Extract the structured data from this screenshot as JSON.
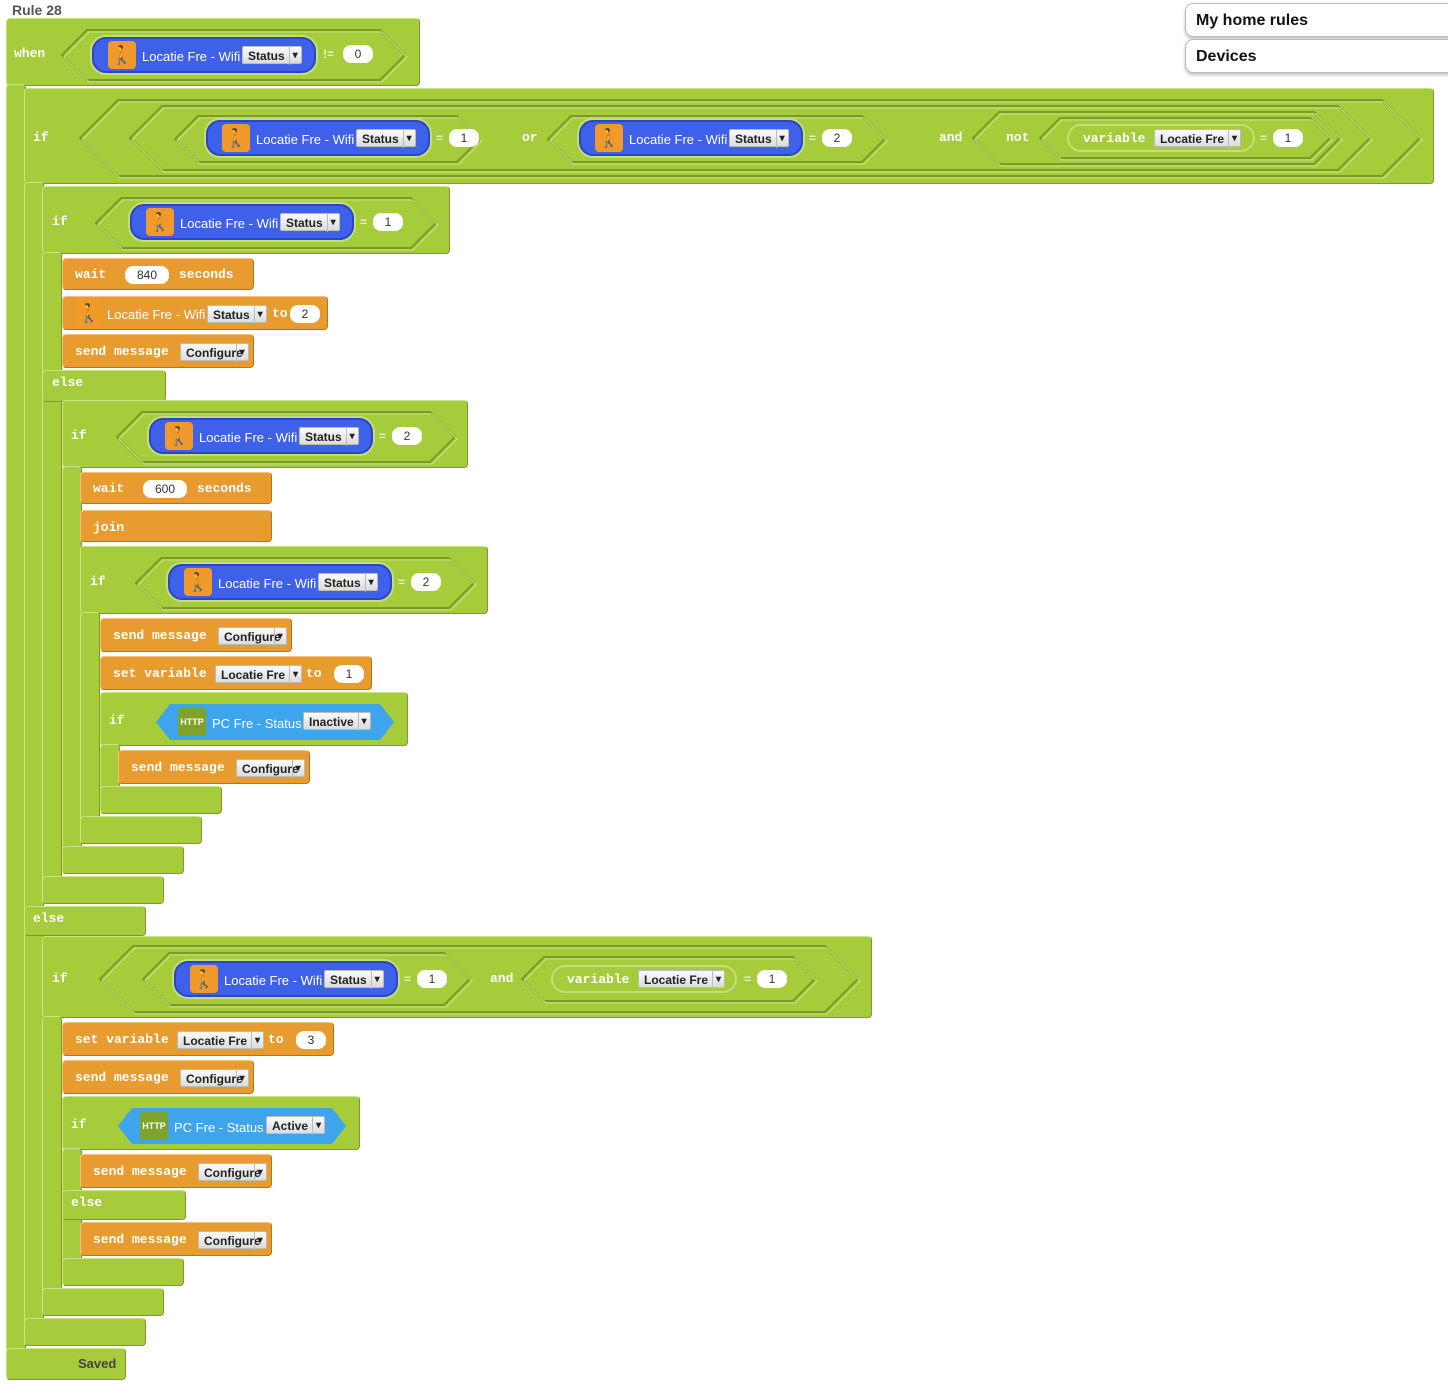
{
  "rule_title": "Rule 28",
  "nav": {
    "my_home_rules": "My home rules",
    "devices": "Devices"
  },
  "kw": {
    "when": "when",
    "if": "if",
    "else": "else",
    "wait": "wait",
    "seconds": "seconds",
    "send_message": "send message",
    "set_variable": "set variable",
    "to": "to",
    "join": "join",
    "or": "or",
    "and": "and",
    "not": "not",
    "variable": "variable",
    "eq": "=",
    "neq": "!="
  },
  "device": {
    "name": "Locatie Fre - Wifi",
    "property": "Status",
    "icon": "walking-person-icon"
  },
  "http": {
    "badge": "HTTP",
    "name": "PC Fre - Status"
  },
  "variable_name": "Locatie Fre",
  "message": "Configure",
  "values": {
    "when": "0",
    "outer_a": "1",
    "outer_b": "2",
    "outer_var": "1",
    "if1": "1",
    "wait1": "840",
    "set_device": "2",
    "if2": "2",
    "wait2": "600",
    "if3": "2",
    "set_var1": "1",
    "http1": "Inactive",
    "if5": "1",
    "if5_var": "1",
    "set_var2": "3",
    "http2": "Active"
  },
  "status": "Saved",
  "colors": {
    "green": "#a6cb3b",
    "orange": "#e89b2e",
    "blue": "#3f60e8",
    "light_blue": "#3ea4ec"
  }
}
